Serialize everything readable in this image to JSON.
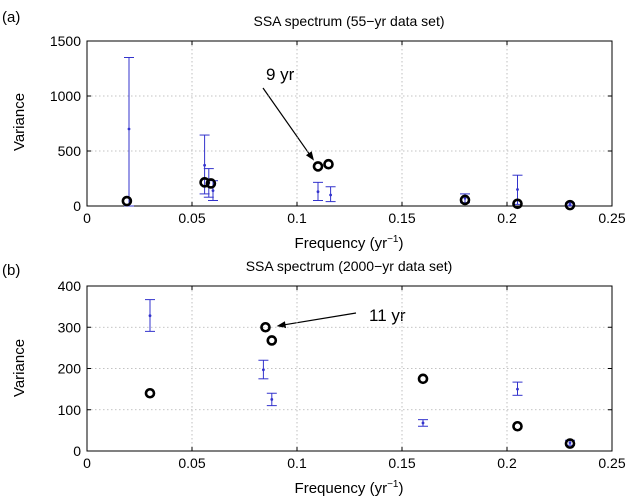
{
  "chart_data": [
    {
      "type": "scatter",
      "panel_label": "(a)",
      "title": "SSA spectrum (55−yr data set)",
      "xlabel": "Frequency (yr",
      "xlabel_sup": "−1",
      "xlabel_close": ")",
      "ylabel": "Variance",
      "xlim": [
        0,
        0.25
      ],
      "ylim": [
        0,
        1500
      ],
      "xticks": [
        0,
        0.05,
        0.1,
        0.15,
        0.2,
        0.25
      ],
      "xtick_labels": [
        "0",
        "0.05",
        "0.1",
        "0.15",
        "0.2",
        "0.25"
      ],
      "yticks": [
        0,
        500,
        1000,
        1500
      ],
      "ytick_labels": [
        "0",
        "500",
        "1000",
        "1500"
      ],
      "grid": true,
      "series": [
        {
          "marker": "circle",
          "points": [
            {
              "x": 0.019,
              "y": 45
            },
            {
              "x": 0.056,
              "y": 215
            },
            {
              "x": 0.059,
              "y": 205
            },
            {
              "x": 0.11,
              "y": 360
            },
            {
              "x": 0.115,
              "y": 380
            },
            {
              "x": 0.18,
              "y": 55
            },
            {
              "x": 0.205,
              "y": 20
            },
            {
              "x": 0.23,
              "y": 8
            }
          ]
        },
        {
          "marker": "errorbar",
          "bars": [
            {
              "x": 0.02,
              "low": 0,
              "high": 1350,
              "mid": 700
            },
            {
              "x": 0.056,
              "low": 110,
              "high": 645,
              "mid": 370
            },
            {
              "x": 0.058,
              "low": 80,
              "high": 340,
              "mid": 210
            },
            {
              "x": 0.06,
              "low": 50,
              "high": 230,
              "mid": 140
            },
            {
              "x": 0.11,
              "low": 50,
              "high": 215,
              "mid": 130
            },
            {
              "x": 0.116,
              "low": 40,
              "high": 175,
              "mid": 100
            },
            {
              "x": 0.18,
              "low": 30,
              "high": 110,
              "mid": 70
            },
            {
              "x": 0.205,
              "low": 15,
              "high": 280,
              "mid": 150
            },
            {
              "x": 0.23,
              "low": 2,
              "high": 28,
              "mid": 12
            }
          ]
        }
      ],
      "annotation": {
        "text": "9 yr",
        "points_to": {
          "x": 0.11,
          "y": 360
        }
      }
    },
    {
      "type": "scatter",
      "panel_label": "(b)",
      "title": "SSA spectrum (2000−yr data set)",
      "xlabel": "Frequency (yr",
      "xlabel_sup": "−1",
      "xlabel_close": ")",
      "ylabel": "Variance",
      "xlim": [
        0,
        0.25
      ],
      "ylim": [
        0,
        400
      ],
      "xticks": [
        0,
        0.05,
        0.1,
        0.15,
        0.2,
        0.25
      ],
      "xtick_labels": [
        "0",
        "0.05",
        "0.1",
        "0.15",
        "0.2",
        "0.25"
      ],
      "yticks": [
        0,
        100,
        200,
        300,
        400
      ],
      "ytick_labels": [
        "0",
        "100",
        "200",
        "300",
        "400"
      ],
      "grid": true,
      "series": [
        {
          "marker": "circle",
          "points": [
            {
              "x": 0.03,
              "y": 140
            },
            {
              "x": 0.085,
              "y": 300
            },
            {
              "x": 0.088,
              "y": 268
            },
            {
              "x": 0.16,
              "y": 175
            },
            {
              "x": 0.205,
              "y": 60
            },
            {
              "x": 0.23,
              "y": 18
            }
          ]
        },
        {
          "marker": "errorbar",
          "bars": [
            {
              "x": 0.03,
              "low": 290,
              "high": 367,
              "mid": 328
            },
            {
              "x": 0.084,
              "low": 175,
              "high": 220,
              "mid": 197
            },
            {
              "x": 0.088,
              "low": 110,
              "high": 140,
              "mid": 125
            },
            {
              "x": 0.16,
              "low": 60,
              "high": 76,
              "mid": 68
            },
            {
              "x": 0.205,
              "low": 135,
              "high": 167,
              "mid": 150
            },
            {
              "x": 0.23,
              "low": 14,
              "high": 26,
              "mid": 20
            }
          ]
        }
      ],
      "annotation": {
        "text": "11 yr",
        "points_to": {
          "x": 0.087,
          "y": 300
        }
      }
    }
  ],
  "colors": {
    "errorbar": "#3333cc",
    "marker": "#000000",
    "axis": "#000000",
    "grid": "#b0b0b0"
  }
}
